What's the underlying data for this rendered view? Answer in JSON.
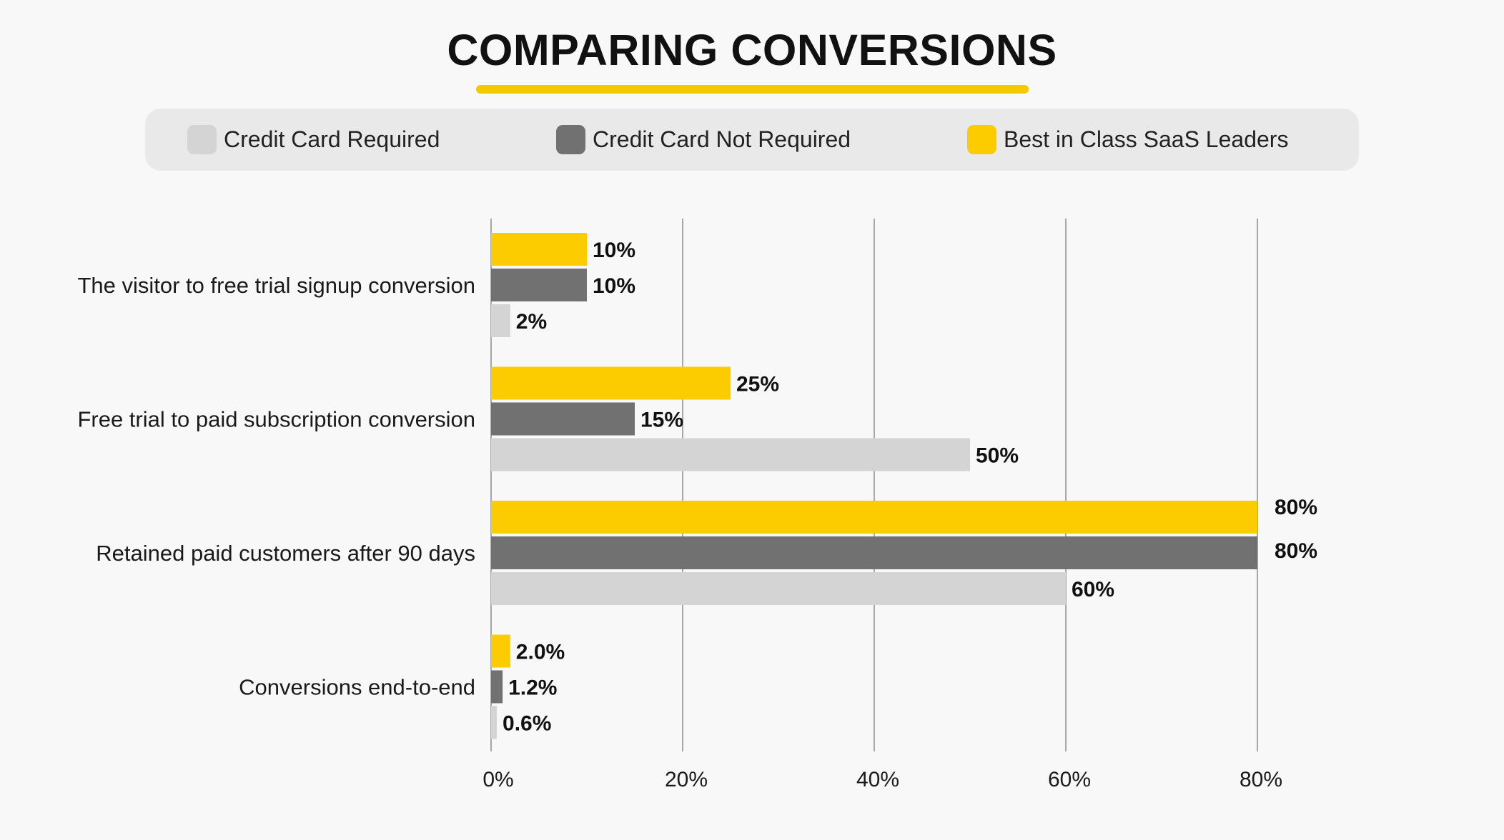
{
  "title": "COMPARING CONVERSIONS",
  "colors": {
    "credit_card_required": "#d4d4d4",
    "credit_card_not_required": "#717171",
    "best_in_class": "#fccb00",
    "accent_underline": "#f6c800",
    "gridline": "#8c8c8c",
    "background": "#f8f8f8",
    "legend_background": "#e9e9e9"
  },
  "legend": {
    "items": [
      {
        "label": "Credit Card Required",
        "color": "#d4d4d4"
      },
      {
        "label": "Credit Card Not Required",
        "color": "#717171"
      },
      {
        "label": "Best in Class SaaS Leaders",
        "color": "#fccb00"
      }
    ]
  },
  "chart_data": {
    "type": "bar",
    "orientation": "horizontal",
    "title": "COMPARING CONVERSIONS",
    "categories": [
      "The visitor to free trial signup conversion",
      "Free trial to paid subscription conversion",
      "Retained paid customers after 90 days",
      "Conversions end-to-end"
    ],
    "series": [
      {
        "name": "Best in Class SaaS Leaders",
        "color": "#fccb00",
        "values": [
          10,
          25,
          80,
          2.0
        ],
        "labels": [
          "10%",
          "25%",
          "80%",
          "2.0%"
        ]
      },
      {
        "name": "Credit Card Not Required",
        "color": "#717171",
        "values": [
          10,
          15,
          80,
          1.2
        ],
        "labels": [
          "10%",
          "15%",
          "80%",
          "1.2%"
        ]
      },
      {
        "name": "Credit Card Required",
        "color": "#d4d4d4",
        "values": [
          2,
          50,
          60,
          0.6
        ],
        "labels": [
          "2%",
          "50%",
          "60%",
          "0.6%"
        ]
      }
    ],
    "xlim": [
      0,
      80
    ],
    "xticks": [
      0,
      20,
      40,
      60,
      80
    ],
    "xtick_labels": [
      "0%",
      "20%",
      "40%",
      "60%",
      "80%"
    ],
    "grid": "vertical",
    "legend_position": "top",
    "xlabel": "",
    "ylabel": ""
  }
}
